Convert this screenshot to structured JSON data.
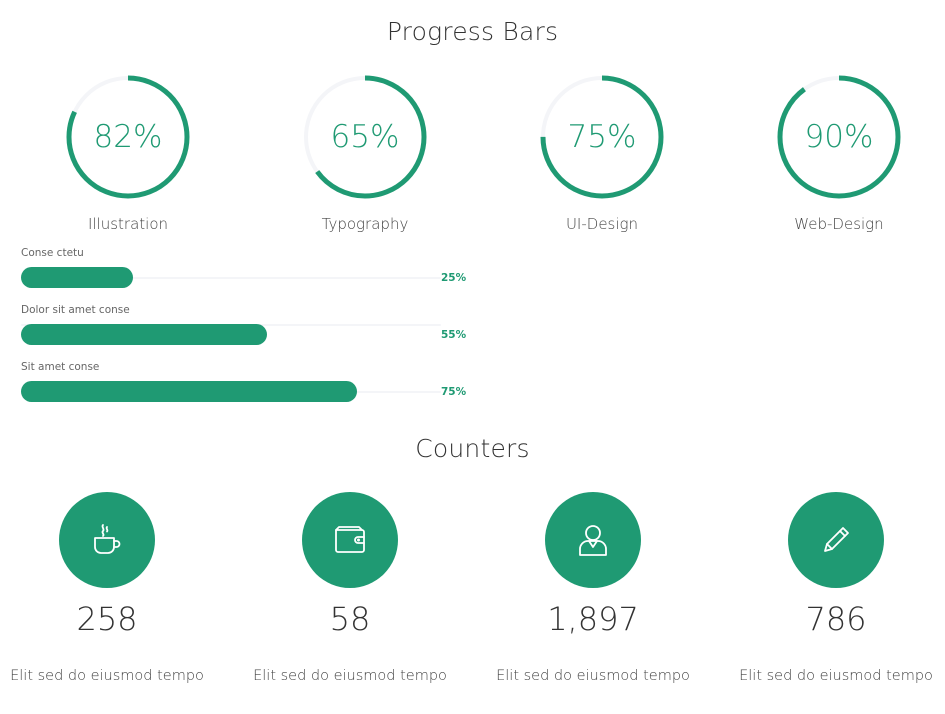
{
  "progress_section": {
    "title": "Progress Bars",
    "rings": [
      {
        "value": 82,
        "value_label": "82%",
        "label": "Illustration"
      },
      {
        "value": 65,
        "value_label": "65%",
        "label": "Typography"
      },
      {
        "value": 75,
        "value_label": "75%",
        "label": "UI-Design"
      },
      {
        "value": 90,
        "value_label": "90%",
        "label": "Web-Design"
      }
    ],
    "bars": [
      {
        "label": "Conse ctetu",
        "value": 25,
        "value_label": "25%"
      },
      {
        "label": "Dolor sit amet conse",
        "value": 55,
        "value_label": "55%"
      },
      {
        "label": "Sit amet conse",
        "value": 75,
        "value_label": "75%"
      }
    ]
  },
  "counters_section": {
    "title": "Counters",
    "items": [
      {
        "icon": "coffee-cup-icon",
        "value": "258",
        "label": "Elit sed do eiusmod tempo"
      },
      {
        "icon": "wallet-icon",
        "value": "58",
        "label": "Elit sed do eiusmod tempo"
      },
      {
        "icon": "user-icon",
        "value": "1,897",
        "label": "Elit sed do eiusmod tempo"
      },
      {
        "icon": "pencil-icon",
        "value": "786",
        "label": "Elit sed do eiusmod tempo"
      }
    ]
  },
  "colors": {
    "accent": "#1f9a73",
    "track": "#f4f5f8",
    "text": "#333333"
  }
}
